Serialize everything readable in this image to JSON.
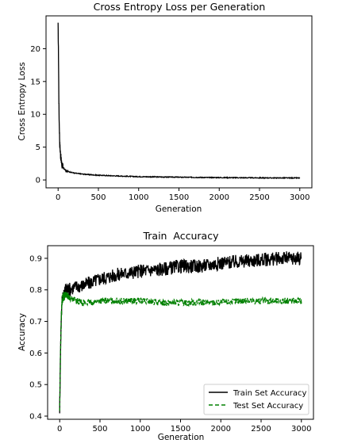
{
  "chart_data": [
    {
      "type": "line",
      "title": "Cross Entropy Loss per Generation",
      "xlabel": "Generation",
      "ylabel": "Cross Entropy Loss",
      "xlim": [
        -150,
        3150
      ],
      "ylim": [
        -1.2,
        25
      ],
      "xticks": [
        0,
        500,
        1000,
        1500,
        2000,
        2500,
        3000
      ],
      "yticks": [
        0,
        5,
        10,
        15,
        20
      ],
      "grid": false,
      "legend": null,
      "series": [
        {
          "color": "#000000",
          "style": "solid",
          "x": [
            0,
            5,
            10,
            15,
            20,
            30,
            40,
            50,
            60,
            80,
            100,
            150,
            200,
            300,
            400,
            500,
            750,
            1000,
            1500,
            2000,
            2500,
            3000
          ],
          "y": [
            23.5,
            19,
            12,
            8,
            5.5,
            3.8,
            2.8,
            2.2,
            1.9,
            1.6,
            1.4,
            1.2,
            1.05,
            0.9,
            0.8,
            0.72,
            0.6,
            0.5,
            0.42,
            0.36,
            0.32,
            0.3
          ]
        }
      ]
    },
    {
      "type": "line",
      "title": "Train  Accuracy",
      "xlabel": "Generation",
      "ylabel": "Accuracy",
      "xlim": [
        -150,
        3150
      ],
      "ylim": [
        0.39,
        0.94
      ],
      "xticks": [
        0,
        500,
        1000,
        1500,
        2000,
        2500,
        3000
      ],
      "yticks": [
        0.4,
        0.5,
        0.6,
        0.7,
        0.8,
        0.9
      ],
      "grid": false,
      "legend": "lower-right",
      "series": [
        {
          "name": "Train Set Accuracy",
          "color": "#000000",
          "style": "solid",
          "x": [
            0,
            10,
            20,
            30,
            50,
            75,
            100,
            200,
            300,
            400,
            500,
            750,
            1000,
            1250,
            1500,
            1750,
            2000,
            2250,
            2500,
            2750,
            3000
          ],
          "y": [
            0.42,
            0.6,
            0.72,
            0.77,
            0.79,
            0.8,
            0.8,
            0.81,
            0.815,
            0.825,
            0.835,
            0.85,
            0.86,
            0.865,
            0.875,
            0.875,
            0.885,
            0.89,
            0.895,
            0.9,
            0.9
          ]
        },
        {
          "name": "Test Set Accuracy",
          "color": "#008000",
          "style": "dashed",
          "x": [
            0,
            10,
            20,
            30,
            50,
            75,
            100,
            200,
            300,
            400,
            500,
            750,
            1000,
            1250,
            1500,
            1750,
            2000,
            2250,
            2500,
            2750,
            3000
          ],
          "y": [
            0.42,
            0.6,
            0.72,
            0.77,
            0.78,
            0.785,
            0.78,
            0.765,
            0.76,
            0.76,
            0.765,
            0.765,
            0.765,
            0.76,
            0.76,
            0.76,
            0.76,
            0.765,
            0.765,
            0.765,
            0.765
          ]
        }
      ]
    }
  ]
}
